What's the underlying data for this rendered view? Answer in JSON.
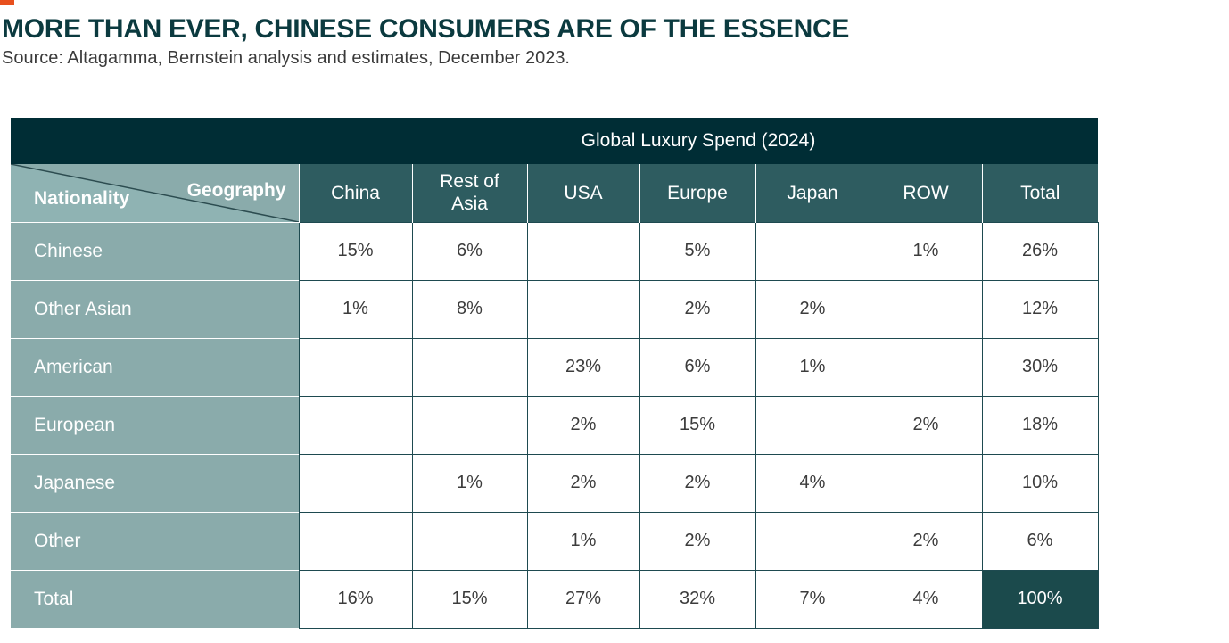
{
  "page": {
    "title": "MORE THAN EVER, CHINESE CONSUMERS ARE OF THE ESSENCE",
    "subtitle": "Source: Altagamma, Bernstein analysis and estimates, December 2023."
  },
  "chart_data": {
    "type": "table",
    "title": "Global Luxury Spend (2024)",
    "row_axis_label": "Nationality",
    "column_axis_label": "Geography",
    "columns": [
      "China",
      "Rest of\nAsia",
      "USA",
      "Europe",
      "Japan",
      "ROW",
      "Total"
    ],
    "rows": [
      {
        "label": "Chinese",
        "values": [
          "15%",
          "6%",
          "",
          "5%",
          "",
          "1%",
          "26%"
        ]
      },
      {
        "label": "Other Asian",
        "values": [
          "1%",
          "8%",
          "",
          "2%",
          "2%",
          "",
          "12%"
        ]
      },
      {
        "label": "American",
        "values": [
          "",
          "",
          "23%",
          "6%",
          "1%",
          "",
          "30%"
        ]
      },
      {
        "label": "European",
        "values": [
          "",
          "",
          "2%",
          "15%",
          "",
          "2%",
          "18%"
        ]
      },
      {
        "label": "Japanese",
        "values": [
          "",
          "1%",
          "2%",
          "2%",
          "4%",
          "",
          "10%"
        ]
      },
      {
        "label": "Other",
        "values": [
          "",
          "",
          "1%",
          "2%",
          "",
          "2%",
          "6%"
        ]
      },
      {
        "label": "Total",
        "values": [
          "16%",
          "15%",
          "27%",
          "32%",
          "7%",
          "4%",
          "100%"
        ]
      }
    ]
  },
  "colors": {
    "accent": "#e8501e",
    "banner": "#002d35",
    "column_header": "#2e5c60",
    "row_label": "#8aabab",
    "grand_total": "#1b4a4c",
    "title": "#0b3a3f"
  }
}
